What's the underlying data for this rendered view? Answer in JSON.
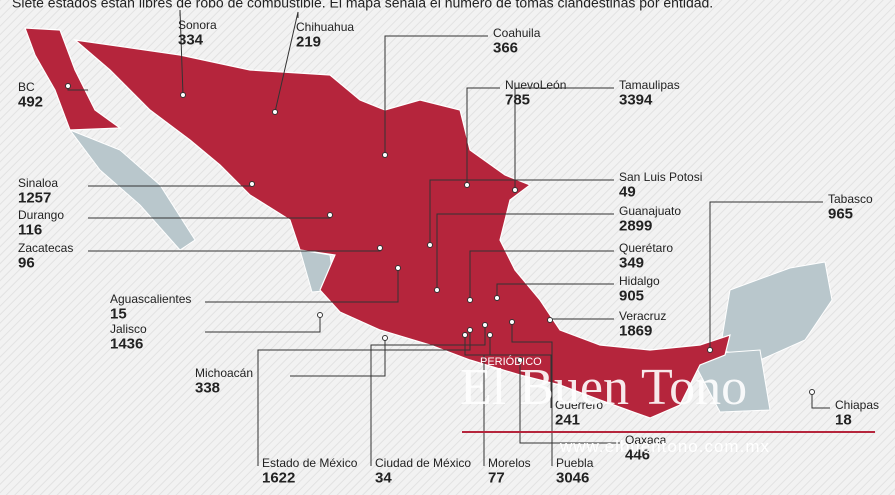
{
  "header": {
    "title": "Siete estados  están libres de robo de combustible. El mapa señala el número de tomas clandestinas por entidad."
  },
  "states": [
    {
      "name": "Sonora",
      "value": "334"
    },
    {
      "name": "Chihuahua",
      "value": "219"
    },
    {
      "name": "Coahuila",
      "value": "366"
    },
    {
      "name": "BC",
      "value": "492"
    },
    {
      "name": "NuevoLeón",
      "value": "785"
    },
    {
      "name": "Tamaulipas",
      "value": "3394"
    },
    {
      "name": "San Luis Potosi",
      "value": "49"
    },
    {
      "name": "Sinaloa",
      "value": "1257"
    },
    {
      "name": "Durango",
      "value": "116"
    },
    {
      "name": "Guanajuato",
      "value": "2899"
    },
    {
      "name": "Tabasco",
      "value": "965"
    },
    {
      "name": "Zacatecas",
      "value": "96"
    },
    {
      "name": "Querétaro",
      "value": "349"
    },
    {
      "name": "Hidalgo",
      "value": "905"
    },
    {
      "name": "Aguascalientes",
      "value": "15"
    },
    {
      "name": "Jalisco",
      "value": "1436"
    },
    {
      "name": "Veracruz",
      "value": "1869"
    },
    {
      "name": "Michoacán",
      "value": "338"
    },
    {
      "name": "Guerrero",
      "value": "241"
    },
    {
      "name": "Chiapas",
      "value": "18"
    },
    {
      "name": "Oaxaca",
      "value": "446"
    },
    {
      "name": "Estado de México",
      "value": "1622"
    },
    {
      "name": "Ciudad de México",
      "value": "34"
    },
    {
      "name": "Morelos",
      "value": "77"
    },
    {
      "name": "Puebla",
      "value": "3046"
    }
  ],
  "watermark": {
    "kicker": "PERIÓDICO",
    "brand": "El Buen Tono",
    "url": "www.elbuentono.com.mx"
  }
}
